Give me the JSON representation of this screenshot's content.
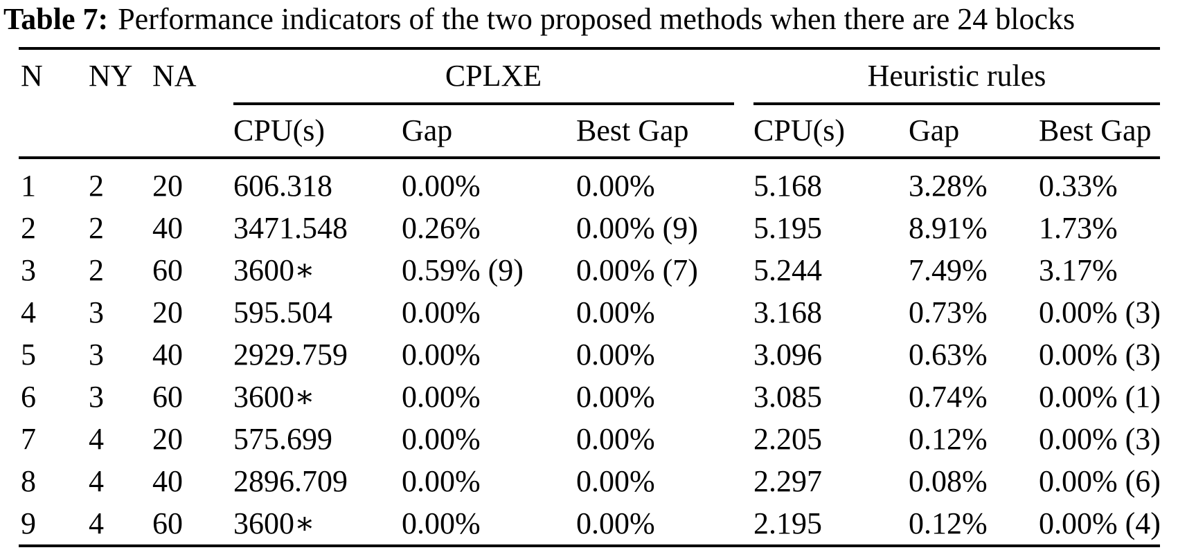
{
  "caption": {
    "label": "Table 7:",
    "text": "Performance indicators of the two proposed methods when there are 24 blocks"
  },
  "table": {
    "stub_headers": [
      "N",
      "NY",
      "NA"
    ],
    "groups": [
      {
        "label": "CPLXE",
        "columns": [
          "CPU(s)",
          "Gap",
          "Best Gap"
        ]
      },
      {
        "label": "Heuristic rules",
        "columns": [
          "CPU(s)",
          "Gap",
          "Best Gap"
        ]
      }
    ],
    "rows": [
      {
        "n": "1",
        "ny": "2",
        "na": "20",
        "cplxe_cpu": "606.318",
        "cplxe_gap": "0.00%",
        "cplxe_best_gap": "0.00%",
        "heur_cpu": "5.168",
        "heur_gap": "3.28%",
        "heur_best_gap": "0.33%"
      },
      {
        "n": "2",
        "ny": "2",
        "na": "40",
        "cplxe_cpu": "3471.548",
        "cplxe_gap": "0.26%",
        "cplxe_best_gap": "0.00% (9)",
        "heur_cpu": "5.195",
        "heur_gap": "8.91%",
        "heur_best_gap": "1.73%"
      },
      {
        "n": "3",
        "ny": "2",
        "na": "60",
        "cplxe_cpu": "3600∗",
        "cplxe_gap": "0.59% (9)",
        "cplxe_best_gap": "0.00% (7)",
        "heur_cpu": "5.244",
        "heur_gap": "7.49%",
        "heur_best_gap": "3.17%"
      },
      {
        "n": "4",
        "ny": "3",
        "na": "20",
        "cplxe_cpu": "595.504",
        "cplxe_gap": "0.00%",
        "cplxe_best_gap": "0.00%",
        "heur_cpu": "3.168",
        "heur_gap": "0.73%",
        "heur_best_gap": "0.00% (3)"
      },
      {
        "n": "5",
        "ny": "3",
        "na": "40",
        "cplxe_cpu": "2929.759",
        "cplxe_gap": "0.00%",
        "cplxe_best_gap": "0.00%",
        "heur_cpu": "3.096",
        "heur_gap": "0.63%",
        "heur_best_gap": "0.00% (3)"
      },
      {
        "n": "6",
        "ny": "3",
        "na": "60",
        "cplxe_cpu": "3600∗",
        "cplxe_gap": "0.00%",
        "cplxe_best_gap": "0.00%",
        "heur_cpu": "3.085",
        "heur_gap": "0.74%",
        "heur_best_gap": "0.00% (1)"
      },
      {
        "n": "7",
        "ny": "4",
        "na": "20",
        "cplxe_cpu": "575.699",
        "cplxe_gap": "0.00%",
        "cplxe_best_gap": "0.00%",
        "heur_cpu": "2.205",
        "heur_gap": "0.12%",
        "heur_best_gap": "0.00% (3)"
      },
      {
        "n": "8",
        "ny": "4",
        "na": "40",
        "cplxe_cpu": "2896.709",
        "cplxe_gap": "0.00%",
        "cplxe_best_gap": "0.00%",
        "heur_cpu": "2.297",
        "heur_gap": "0.08%",
        "heur_best_gap": "0.00% (6)"
      },
      {
        "n": "9",
        "ny": "4",
        "na": "60",
        "cplxe_cpu": "3600∗",
        "cplxe_gap": "0.00%",
        "cplxe_best_gap": "0.00%",
        "heur_cpu": "2.195",
        "heur_gap": "0.12%",
        "heur_best_gap": "0.00% (4)"
      }
    ]
  }
}
